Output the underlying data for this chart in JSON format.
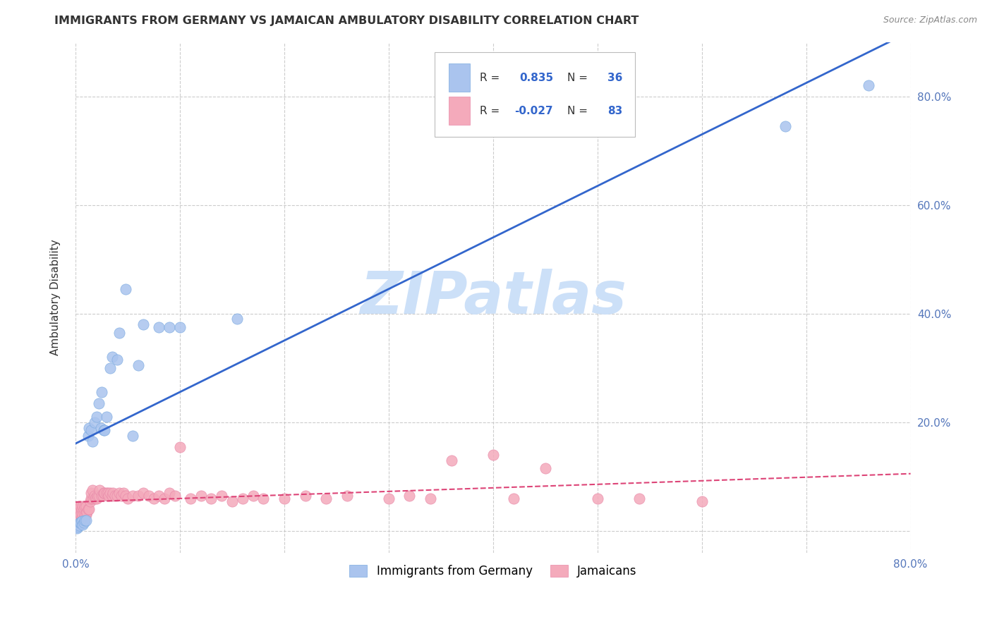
{
  "title": "IMMIGRANTS FROM GERMANY VS JAMAICAN AMBULATORY DISABILITY CORRELATION CHART",
  "source": "Source: ZipAtlas.com",
  "ylabel": "Ambulatory Disability",
  "xlim": [
    0.0,
    0.8
  ],
  "ylim": [
    -0.04,
    0.9
  ],
  "ytick_vals": [
    0.0,
    0.2,
    0.4,
    0.6,
    0.8
  ],
  "xtick_vals": [
    0.0,
    0.1,
    0.2,
    0.3,
    0.4,
    0.5,
    0.6,
    0.7,
    0.8
  ],
  "germany_color": "#aac4ee",
  "germany_edge_color": "#7aaae0",
  "jamaica_color": "#f4aabb",
  "jamaica_edge_color": "#e888a8",
  "germany_line_color": "#3366cc",
  "jamaica_line_color": "#dd4477",
  "germany_R": 0.835,
  "germany_N": 36,
  "jamaica_R": -0.027,
  "jamaica_N": 83,
  "watermark_text": "ZIPatlas",
  "watermark_color": "#cce0f8",
  "background_color": "#ffffff",
  "grid_color": "#cccccc",
  "tick_color": "#5577bb",
  "label_color": "#333333",
  "germany_x": [
    0.001,
    0.002,
    0.003,
    0.004,
    0.005,
    0.006,
    0.007,
    0.008,
    0.009,
    0.01,
    0.012,
    0.013,
    0.015,
    0.016,
    0.018,
    0.02,
    0.022,
    0.024,
    0.025,
    0.027,
    0.028,
    0.03,
    0.033,
    0.035,
    0.04,
    0.042,
    0.048,
    0.055,
    0.06,
    0.065,
    0.08,
    0.09,
    0.1,
    0.155,
    0.68,
    0.76
  ],
  "germany_y": [
    0.005,
    0.008,
    0.01,
    0.015,
    0.015,
    0.018,
    0.012,
    0.015,
    0.02,
    0.02,
    0.175,
    0.19,
    0.185,
    0.165,
    0.2,
    0.21,
    0.235,
    0.19,
    0.255,
    0.185,
    0.185,
    0.21,
    0.3,
    0.32,
    0.315,
    0.365,
    0.445,
    0.175,
    0.305,
    0.38,
    0.375,
    0.375,
    0.375,
    0.39,
    0.745,
    0.82
  ],
  "jamaica_x": [
    0.001,
    0.001,
    0.002,
    0.002,
    0.003,
    0.003,
    0.004,
    0.004,
    0.005,
    0.005,
    0.006,
    0.006,
    0.007,
    0.007,
    0.008,
    0.008,
    0.009,
    0.009,
    0.01,
    0.01,
    0.011,
    0.012,
    0.013,
    0.014,
    0.015,
    0.015,
    0.016,
    0.017,
    0.018,
    0.019,
    0.02,
    0.021,
    0.022,
    0.023,
    0.025,
    0.026,
    0.027,
    0.028,
    0.03,
    0.031,
    0.032,
    0.033,
    0.035,
    0.036,
    0.038,
    0.04,
    0.042,
    0.044,
    0.046,
    0.048,
    0.05,
    0.055,
    0.06,
    0.065,
    0.07,
    0.075,
    0.08,
    0.085,
    0.09,
    0.095,
    0.1,
    0.11,
    0.12,
    0.13,
    0.14,
    0.15,
    0.16,
    0.17,
    0.18,
    0.2,
    0.22,
    0.24,
    0.26,
    0.3,
    0.32,
    0.34,
    0.36,
    0.4,
    0.42,
    0.45,
    0.5,
    0.54,
    0.6
  ],
  "jamaica_y": [
    0.02,
    0.035,
    0.025,
    0.04,
    0.03,
    0.045,
    0.025,
    0.04,
    0.03,
    0.045,
    0.025,
    0.04,
    0.03,
    0.045,
    0.025,
    0.04,
    0.03,
    0.045,
    0.03,
    0.045,
    0.035,
    0.04,
    0.04,
    0.055,
    0.06,
    0.07,
    0.075,
    0.06,
    0.065,
    0.06,
    0.06,
    0.065,
    0.065,
    0.075,
    0.065,
    0.065,
    0.07,
    0.07,
    0.07,
    0.07,
    0.065,
    0.07,
    0.065,
    0.07,
    0.065,
    0.065,
    0.07,
    0.065,
    0.07,
    0.065,
    0.06,
    0.065,
    0.065,
    0.07,
    0.065,
    0.06,
    0.065,
    0.06,
    0.07,
    0.065,
    0.155,
    0.06,
    0.065,
    0.06,
    0.065,
    0.055,
    0.06,
    0.065,
    0.06,
    0.06,
    0.065,
    0.06,
    0.065,
    0.06,
    0.065,
    0.06,
    0.13,
    0.14,
    0.06,
    0.115,
    0.06,
    0.06,
    0.055
  ],
  "legend_germany_label": "Immigrants from Germany",
  "legend_jamaica_label": "Jamaicans"
}
